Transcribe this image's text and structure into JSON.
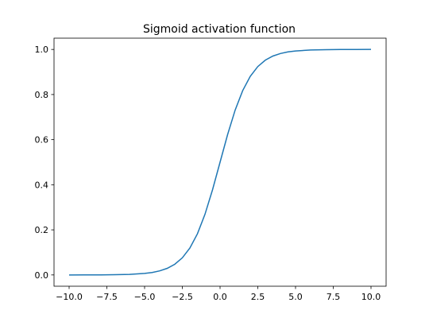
{
  "chart_data": {
    "type": "line",
    "title": "Sigmoid activation function",
    "xlabel": "",
    "ylabel": "",
    "xlim": [
      -11.0,
      11.0
    ],
    "ylim": [
      -0.05,
      1.05
    ],
    "grid": false,
    "x_ticks": [
      -10.0,
      -7.5,
      -5.0,
      -2.5,
      0.0,
      2.5,
      5.0,
      7.5,
      10.0
    ],
    "x_tick_labels": [
      "−10.0",
      "−7.5",
      "−5.0",
      "−2.5",
      "0.0",
      "2.5",
      "5.0",
      "7.5",
      "10.0"
    ],
    "y_ticks": [
      0.0,
      0.2,
      0.4,
      0.6,
      0.8,
      1.0
    ],
    "y_tick_labels": [
      "0.0",
      "0.2",
      "0.4",
      "0.6",
      "0.8",
      "1.0"
    ],
    "series": [
      {
        "color": "#1f77b4",
        "x": [
          -10,
          -9,
          -8,
          -7,
          -6,
          -5,
          -4.5,
          -4,
          -3.5,
          -3,
          -2.5,
          -2,
          -1.5,
          -1,
          -0.5,
          0,
          0.5,
          1,
          1.5,
          2,
          2.5,
          3,
          3.5,
          4,
          4.5,
          5,
          6,
          7,
          8,
          9,
          10
        ],
        "y": [
          0.0,
          0.0001,
          0.0003,
          0.0009,
          0.0025,
          0.0067,
          0.011,
          0.018,
          0.0293,
          0.0474,
          0.0759,
          0.1192,
          0.1824,
          0.2689,
          0.3775,
          0.5,
          0.6225,
          0.7311,
          0.8176,
          0.8808,
          0.9241,
          0.9526,
          0.9707,
          0.982,
          0.989,
          0.9933,
          0.9975,
          0.9991,
          0.9997,
          0.9999,
          1.0
        ]
      }
    ]
  }
}
